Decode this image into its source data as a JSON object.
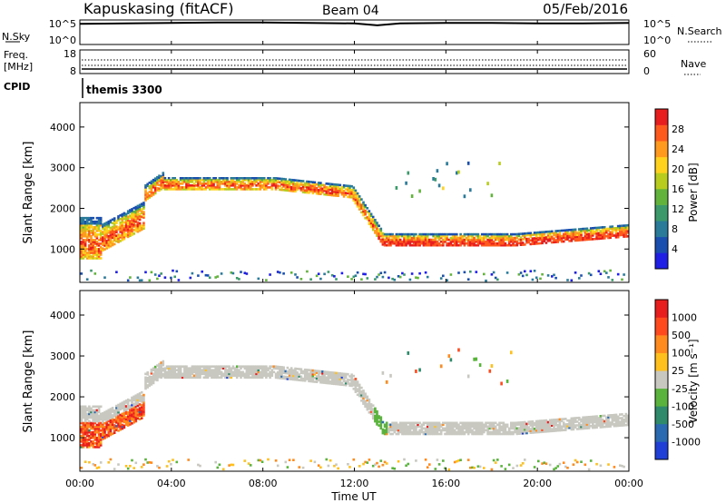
{
  "header": {
    "station": "Kapuskasing (fitACF)",
    "beam": "Beam 04",
    "date": "05/Feb/2016"
  },
  "panels": {
    "nsky": {
      "label": "N.Sky",
      "tick_top": "10^5",
      "tick_bottom": "10^0",
      "right_tick_top": "10^5",
      "right_tick_bottom": "10^0",
      "right_label": "N.Search"
    },
    "freq": {
      "label_line1": "Freq.",
      "label_line2": "[MHz]",
      "tick_top": "18",
      "tick_bottom": "8",
      "right_tick_top": "60",
      "right_tick_bottom": "0",
      "right_label": "Nave"
    },
    "cpid": {
      "label": "CPID",
      "value": "themis 3300"
    },
    "power": {
      "ylabel": "Slant Range [km]",
      "colorbar_label": "Power [dB]",
      "colorbar_ticks": [
        "28",
        "24",
        "20",
        "16",
        "12",
        "8",
        "4"
      ],
      "colors": [
        "#1f1fe6",
        "#1a4fb0",
        "#2a7a9a",
        "#3c9a6a",
        "#62b33c",
        "#b8cc1e",
        "#ffd21e",
        "#ff9a1e",
        "#ff5a1e",
        "#e81e1e"
      ]
    },
    "velocity": {
      "ylabel": "Slant Range [km]",
      "colorbar_label": "Velocity [m s⁻¹]",
      "colorbar_ticks": [
        "1000",
        "500",
        "100",
        "25",
        "-25",
        "-100",
        "-500",
        "-1000"
      ],
      "colors": [
        "#1f3fd6",
        "#2a6ab0",
        "#2e8a6a",
        "#5ab33c",
        "#c8c8c0",
        "#ffc01e",
        "#ff8a1e",
        "#ff4a1e",
        "#e81e1e"
      ]
    },
    "xlabel": "Time UT"
  },
  "chart_data": [
    {
      "type": "line",
      "title": "N.Sky",
      "x": [
        0,
        2,
        4,
        6,
        8,
        10,
        12,
        13,
        14,
        16,
        18,
        20,
        22,
        24
      ],
      "series": [
        {
          "values": [
            4.2,
            4.3,
            4.4,
            4.5,
            4.5,
            4.4,
            4.3,
            3.9,
            4.3,
            4.4,
            4.4,
            4.3,
            4.3,
            4.4
          ]
        }
      ],
      "xlim": [
        0,
        24
      ],
      "ylim": [
        0,
        5
      ]
    },
    {
      "type": "line",
      "title": "Freq.",
      "x": [
        0,
        24
      ],
      "series": [
        {
          "values": [
            10.5,
            10.5
          ]
        }
      ],
      "xlim": [
        0,
        24
      ],
      "ylim": [
        8,
        18
      ]
    },
    {
      "type": "heatmap",
      "ylabel": "Slant Range [km]",
      "xlim": [
        0,
        24
      ],
      "ylim": [
        180,
        4600
      ],
      "clim": [
        0,
        30
      ],
      "colorbar_label": "Power [dB]",
      "xticks": [
        "00:00",
        "04:00",
        "08:00",
        "12:00",
        "16:00",
        "20:00",
        "00:00"
      ],
      "yticks": [
        1000,
        2000,
        3000,
        4000
      ]
    },
    {
      "type": "heatmap",
      "ylabel": "Slant Range [km]",
      "xlabel": "Time UT",
      "xlim": [
        0,
        24
      ],
      "ylim": [
        180,
        4600
      ],
      "clim": [
        -1000,
        1000
      ],
      "colorbar_label": "Velocity [m s⁻¹]",
      "xticks": [
        "00:00",
        "04:00",
        "08:00",
        "12:00",
        "16:00",
        "20:00",
        "00:00"
      ],
      "yticks": [
        1000,
        2000,
        3000,
        4000
      ]
    }
  ]
}
